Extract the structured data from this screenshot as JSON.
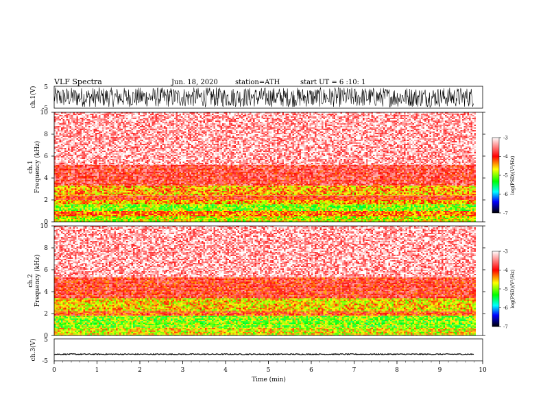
{
  "header": {
    "title": "VLF  Spectra",
    "date": "Jun. 18, 2020",
    "station": "station=ATH",
    "start": "start  UT  =   6  :10: 1"
  },
  "colors": {
    "background": "#ffffff",
    "axis": "#000000",
    "waveform": "#000000",
    "colormap": [
      "#ffffff",
      "#ff0000",
      "#ffff00",
      "#00ff00",
      "#00ffff",
      "#0000ff",
      "#000000"
    ]
  },
  "chart_data": [
    {
      "type": "line",
      "name": "ch1-waveform",
      "ylabel": "ch.1(V)",
      "ylim": [
        -5,
        5
      ],
      "yticks": [
        "5",
        "-5"
      ],
      "xlim": [
        0,
        10
      ],
      "description_of_signal": "noise",
      "amplitude_range": [
        -4.5,
        4.5
      ]
    },
    {
      "type": "heatmap",
      "name": "ch1-spectrogram",
      "ylabel": "Frequency  (kHz)",
      "ylabel_channel": "ch.1",
      "ylim": [
        0,
        10
      ],
      "yticks": [
        "0",
        "2",
        "4",
        "6",
        "8",
        "10"
      ],
      "xlim": [
        0,
        9.8
      ],
      "bands": [
        {
          "from": 0,
          "to": 0.5,
          "level": -4.8
        },
        {
          "from": 0.5,
          "to": 1.0,
          "level": -4.3
        },
        {
          "from": 1.0,
          "to": 1.6,
          "level": -5.0
        },
        {
          "from": 1.6,
          "to": 2.0,
          "level": -4.5
        },
        {
          "from": 2.0,
          "to": 2.4,
          "level": -4.0
        },
        {
          "from": 2.4,
          "to": 3.3,
          "level": -4.5
        },
        {
          "from": 3.3,
          "to": 5.2,
          "level": -3.8
        },
        {
          "from": 5.2,
          "to": 10,
          "level": -3.3
        }
      ],
      "colorbar": {
        "label": "log(PSD)(V²/Hz)",
        "ticks": [
          "-3",
          "-4",
          "-5",
          "-6",
          "-7"
        ],
        "range": [
          -7,
          -3
        ]
      }
    },
    {
      "type": "heatmap",
      "name": "ch2-spectrogram",
      "ylabel": "Frequency  (kHz)",
      "ylabel_channel": "ch.2",
      "ylim": [
        0,
        10
      ],
      "yticks": [
        "0",
        "2",
        "4",
        "6",
        "8",
        "10"
      ],
      "xlim": [
        0,
        9.8
      ],
      "bands": [
        {
          "from": 0,
          "to": 0.7,
          "level": -4.7
        },
        {
          "from": 0.7,
          "to": 1.8,
          "level": -5.0
        },
        {
          "from": 1.8,
          "to": 2.2,
          "level": -4.1
        },
        {
          "from": 2.2,
          "to": 3.4,
          "level": -4.6
        },
        {
          "from": 3.4,
          "to": 5.3,
          "level": -3.9
        },
        {
          "from": 5.3,
          "to": 10,
          "level": -3.3
        }
      ],
      "colorbar": {
        "label": "log(PSD)(V²/Hz)",
        "ticks": [
          "-3",
          "-4",
          "-5",
          "-6",
          "-7"
        ],
        "range": [
          -7,
          -3
        ]
      }
    },
    {
      "type": "line",
      "name": "ch3-waveform",
      "ylabel": "ch.3(V)",
      "ylim": [
        -5,
        5
      ],
      "yticks": [
        "5",
        "-5"
      ],
      "xlim": [
        0,
        10
      ],
      "level": -2,
      "amplitude": 0.25
    }
  ],
  "xaxis": {
    "label": "Time  (min)",
    "ticks": [
      "0",
      "1",
      "2",
      "3",
      "4",
      "5",
      "6",
      "7",
      "8",
      "9",
      "10"
    ],
    "range": [
      0,
      10
    ]
  }
}
